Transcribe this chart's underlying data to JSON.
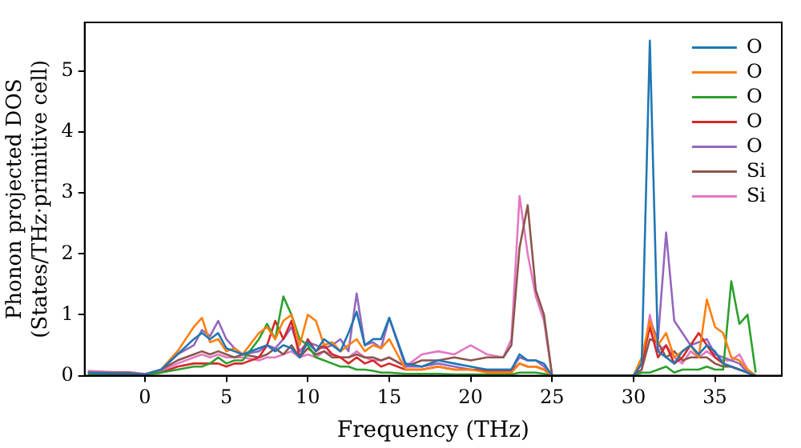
{
  "chart_data": {
    "type": "line",
    "xlabel": "Frequency (THz)",
    "ylabel": "Phonon projected DOS\n(States/THz·primitive cell)",
    "x": [
      -3.5,
      -2,
      -1,
      0,
      1,
      2,
      3,
      3.5,
      4,
      4.5,
      5,
      5.5,
      6,
      7,
      7.5,
      8,
      8.5,
      9,
      9.5,
      10,
      10.5,
      11,
      11.5,
      12,
      12.5,
      13,
      13.5,
      14,
      14.5,
      15,
      16,
      17,
      18,
      19,
      20,
      21,
      22,
      22.5,
      23,
      23.5,
      24,
      24.5,
      25,
      30,
      30.5,
      31,
      31.5,
      32,
      32.5,
      33,
      33.5,
      34,
      34.5,
      35,
      35.5,
      36,
      36.5,
      37,
      37.5
    ],
    "series": [
      {
        "name": "O",
        "color": "#1f77b4",
        "values": [
          0.05,
          0.03,
          0.03,
          0.02,
          0.1,
          0.35,
          0.6,
          0.7,
          0.6,
          0.7,
          0.45,
          0.4,
          0.35,
          0.45,
          0.5,
          0.4,
          0.5,
          0.45,
          0.3,
          0.55,
          0.4,
          0.6,
          0.5,
          0.4,
          0.7,
          1.05,
          0.5,
          0.6,
          0.6,
          0.95,
          0.2,
          0.15,
          0.25,
          0.2,
          0.15,
          0.1,
          0.1,
          0.1,
          0.35,
          0.25,
          0.25,
          0.2,
          0,
          0,
          0.2,
          5.5,
          0.4,
          0.3,
          0.2,
          0.4,
          0.5,
          0.35,
          0.5,
          0.4,
          0.2,
          0.15,
          0.1,
          0.05,
          0
        ]
      },
      {
        "name": "O",
        "color": "#ff7f0e",
        "values": [
          null,
          null,
          null,
          0.02,
          0.1,
          0.4,
          0.8,
          0.95,
          0.55,
          0.6,
          0.4,
          0.45,
          0.35,
          0.7,
          0.8,
          0.6,
          0.9,
          1.0,
          0.5,
          1.0,
          0.9,
          0.5,
          0.55,
          0.4,
          0.5,
          0.6,
          0.4,
          0.5,
          0.45,
          0.6,
          0.1,
          0.1,
          0.15,
          0.1,
          0.1,
          0.05,
          0.05,
          0.05,
          0.2,
          0.15,
          0.15,
          0.1,
          0,
          0,
          0.3,
          0.9,
          0.5,
          0.7,
          0.3,
          0.4,
          0.5,
          0.3,
          1.25,
          0.8,
          0.7,
          0.3,
          0.25,
          0.1,
          0
        ]
      },
      {
        "name": "O",
        "color": "#2ca02c",
        "values": [
          0.02,
          0.02,
          0.02,
          0.01,
          0.05,
          0.1,
          0.15,
          0.15,
          0.2,
          0.3,
          0.2,
          0.25,
          0.25,
          0.6,
          0.85,
          0.6,
          1.3,
          1.0,
          0.6,
          0.5,
          0.3,
          0.25,
          0.2,
          0.15,
          0.15,
          0.1,
          0.1,
          0.08,
          0.05,
          0.05,
          0.03,
          0.03,
          0.03,
          0.02,
          0.02,
          0.02,
          0.02,
          0.02,
          0.05,
          0.05,
          0.05,
          0.03,
          0,
          0,
          0.05,
          0.05,
          0.1,
          0.15,
          0.05,
          0.1,
          0.1,
          0.1,
          0.15,
          0.1,
          0.1,
          1.55,
          0.85,
          1.0,
          0.05
        ]
      },
      {
        "name": "O",
        "color": "#d62728",
        "values": [
          null,
          null,
          null,
          0.01,
          0.05,
          0.15,
          0.2,
          0.2,
          0.2,
          0.2,
          0.15,
          0.2,
          0.2,
          0.3,
          0.5,
          0.9,
          0.6,
          0.9,
          0.3,
          0.6,
          0.4,
          0.5,
          0.35,
          0.3,
          0.2,
          0.3,
          0.2,
          0.25,
          0.15,
          0.2,
          0.1,
          0.1,
          0.15,
          0.1,
          0.1,
          0.08,
          0.08,
          0.08,
          0.2,
          0.15,
          0.15,
          0.1,
          0,
          0,
          0.2,
          0.8,
          0.3,
          0.5,
          0.2,
          0.3,
          0.5,
          0.7,
          0.5,
          0.3,
          0.2,
          0.15,
          0.1,
          0.05,
          0
        ]
      },
      {
        "name": "O",
        "color": "#9467bd",
        "values": [
          null,
          null,
          null,
          0.02,
          0.1,
          0.35,
          0.5,
          0.75,
          0.65,
          0.9,
          0.6,
          0.45,
          0.35,
          0.4,
          0.5,
          0.45,
          0.6,
          0.8,
          0.4,
          0.55,
          0.5,
          0.45,
          0.5,
          0.6,
          0.4,
          1.35,
          0.5,
          0.55,
          0.45,
          0.95,
          0.15,
          0.15,
          0.2,
          0.15,
          0.1,
          0.1,
          0.1,
          0.1,
          0.3,
          0.25,
          0.25,
          0.15,
          0,
          0,
          0.2,
          0.9,
          0.6,
          2.35,
          0.9,
          0.7,
          0.5,
          0.55,
          0.6,
          0.35,
          0.3,
          0.25,
          0.2,
          0.05,
          0
        ]
      },
      {
        "name": "Si",
        "color": "#8c564b",
        "values": [
          0.05,
          0.05,
          0.05,
          0.02,
          0.1,
          0.25,
          0.35,
          0.4,
          0.35,
          0.4,
          0.35,
          0.3,
          0.35,
          0.3,
          0.35,
          0.45,
          0.35,
          0.5,
          0.3,
          0.45,
          0.35,
          0.4,
          0.3,
          0.3,
          0.3,
          0.35,
          0.3,
          0.3,
          0.25,
          0.3,
          0.15,
          0.25,
          0.25,
          0.3,
          0.25,
          0.3,
          0.3,
          0.5,
          2.1,
          2.8,
          1.4,
          1.0,
          0,
          0,
          0.1,
          0.6,
          0.55,
          0.3,
          0.4,
          0.25,
          0.3,
          0.3,
          0.3,
          0.2,
          0.15,
          0.15,
          0.1,
          0.05,
          0
        ]
      },
      {
        "name": "Si",
        "color": "#e377c2",
        "values": [
          0.08,
          0.06,
          0.06,
          0.03,
          0.08,
          0.2,
          0.3,
          0.35,
          0.3,
          0.35,
          0.3,
          0.3,
          0.3,
          0.25,
          0.3,
          0.3,
          0.35,
          0.4,
          0.3,
          0.35,
          0.3,
          0.4,
          0.35,
          0.3,
          0.3,
          0.4,
          0.3,
          0.25,
          0.25,
          0.3,
          0.15,
          0.35,
          0.4,
          0.35,
          0.5,
          0.35,
          0.3,
          0.6,
          2.95,
          2.0,
          1.3,
          0.9,
          0,
          0,
          0.1,
          1.0,
          0.4,
          0.5,
          0.3,
          0.2,
          0.4,
          0.3,
          0.4,
          0.3,
          0.25,
          0.25,
          0.35,
          0.1,
          0
        ]
      }
    ],
    "xlim": [
      -3.7,
      39.1
    ],
    "xticks": [
      0,
      5,
      10,
      15,
      20,
      25,
      30,
      35
    ],
    "ylim": [
      0,
      5.8
    ],
    "yticks": [
      0,
      1,
      2,
      3,
      4,
      5
    ],
    "grid": false,
    "legend": "top right",
    "marker": "none",
    "line_style": "solid"
  }
}
